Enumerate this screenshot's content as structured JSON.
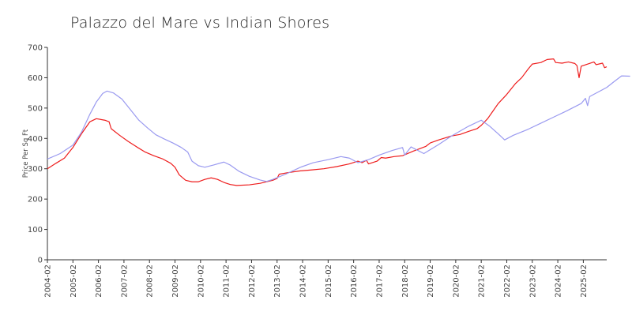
{
  "chart_data": {
    "type": "line",
    "title": "Palazzo del Mare vs Indian Shores",
    "xlabel": "",
    "ylabel": "Price Per Sq Ft",
    "x_tick_labels": [
      "2004-02",
      "2005-02",
      "2006-02",
      "2007-02",
      "2008-02",
      "2009-02",
      "2010-02",
      "2011-02",
      "2012-02",
      "2013-02",
      "2014-02",
      "2015-02",
      "2016-02",
      "2017-02",
      "2018-02",
      "2019-02",
      "2020-02",
      "2021-02",
      "2022-02",
      "2023-02",
      "2024-02",
      "2025-02"
    ],
    "y_ticks": [
      0,
      100,
      200,
      300,
      400,
      500,
      600,
      700
    ],
    "ylim": [
      0,
      700
    ],
    "xlim": [
      "2004-02",
      "2026-01"
    ],
    "grid": false,
    "legend": "none",
    "series": [
      {
        "color": "#ee1c1c",
        "points": [
          [
            "2004-02",
            300
          ],
          [
            "2004-06",
            318
          ],
          [
            "2004-10",
            335
          ],
          [
            "2005-02",
            370
          ],
          [
            "2005-06",
            415
          ],
          [
            "2005-10",
            455
          ],
          [
            "2006-01",
            465
          ],
          [
            "2006-05",
            460
          ],
          [
            "2006-07",
            455
          ],
          [
            "2006-08",
            432
          ],
          [
            "2006-12",
            410
          ],
          [
            "2007-04",
            390
          ],
          [
            "2007-08",
            372
          ],
          [
            "2007-12",
            355
          ],
          [
            "2008-04",
            343
          ],
          [
            "2008-08",
            333
          ],
          [
            "2008-12",
            318
          ],
          [
            "2009-02",
            305
          ],
          [
            "2009-04",
            280
          ],
          [
            "2009-07",
            262
          ],
          [
            "2009-10",
            257
          ],
          [
            "2010-01",
            257
          ],
          [
            "2010-04",
            265
          ],
          [
            "2010-07",
            270
          ],
          [
            "2010-10",
            265
          ],
          [
            "2011-01",
            255
          ],
          [
            "2011-04",
            248
          ],
          [
            "2011-07",
            245
          ],
          [
            "2012-01",
            247
          ],
          [
            "2012-06",
            252
          ],
          [
            "2012-12",
            262
          ],
          [
            "2013-02",
            268
          ],
          [
            "2013-03",
            282
          ],
          [
            "2013-07",
            287
          ],
          [
            "2014-01",
            293
          ],
          [
            "2014-06",
            296
          ],
          [
            "2014-12",
            300
          ],
          [
            "2015-06",
            307
          ],
          [
            "2015-12",
            316
          ],
          [
            "2016-04",
            325
          ],
          [
            "2016-06",
            320
          ],
          [
            "2016-08",
            328
          ],
          [
            "2016-09",
            316
          ],
          [
            "2017-01",
            325
          ],
          [
            "2017-03",
            337
          ],
          [
            "2017-05",
            335
          ],
          [
            "2017-09",
            340
          ],
          [
            "2018-01",
            343
          ],
          [
            "2018-06",
            358
          ],
          [
            "2018-12",
            374
          ],
          [
            "2019-02",
            385
          ],
          [
            "2019-06",
            395
          ],
          [
            "2019-12",
            408
          ],
          [
            "2020-04",
            413
          ],
          [
            "2020-08",
            423
          ],
          [
            "2020-12",
            432
          ],
          [
            "2021-02",
            443
          ],
          [
            "2021-05",
            465
          ],
          [
            "2021-07",
            485
          ],
          [
            "2021-10",
            515
          ],
          [
            "2022-02",
            545
          ],
          [
            "2022-06",
            580
          ],
          [
            "2022-09",
            600
          ],
          [
            "2022-12",
            628
          ],
          [
            "2023-02",
            645
          ],
          [
            "2023-06",
            650
          ],
          [
            "2023-09",
            660
          ],
          [
            "2023-12",
            662
          ],
          [
            "2024-01",
            650
          ],
          [
            "2024-04",
            648
          ],
          [
            "2024-07",
            652
          ],
          [
            "2024-10",
            647
          ],
          [
            "2024-11",
            640
          ],
          [
            "2024-12",
            600
          ],
          [
            "2025-01",
            638
          ],
          [
            "2025-04",
            645
          ],
          [
            "2025-07",
            652
          ],
          [
            "2025-08",
            643
          ],
          [
            "2025-11",
            648
          ],
          [
            "2025-12",
            633
          ],
          [
            "2026-01",
            636
          ]
        ]
      },
      {
        "color": "#9a9af0",
        "points": [
          [
            "2004-02",
            332
          ],
          [
            "2004-08",
            350
          ],
          [
            "2005-02",
            378
          ],
          [
            "2005-06",
            420
          ],
          [
            "2005-10",
            480
          ],
          [
            "2006-01",
            520
          ],
          [
            "2006-04",
            548
          ],
          [
            "2006-06",
            556
          ],
          [
            "2006-09",
            550
          ],
          [
            "2007-01",
            530
          ],
          [
            "2007-05",
            495
          ],
          [
            "2007-09",
            460
          ],
          [
            "2008-01",
            435
          ],
          [
            "2008-05",
            412
          ],
          [
            "2008-09",
            398
          ],
          [
            "2009-01",
            385
          ],
          [
            "2009-05",
            370
          ],
          [
            "2009-08",
            355
          ],
          [
            "2009-10",
            325
          ],
          [
            "2010-01",
            310
          ],
          [
            "2010-04",
            305
          ],
          [
            "2010-08",
            312
          ],
          [
            "2011-01",
            322
          ],
          [
            "2011-04",
            312
          ],
          [
            "2011-08",
            292
          ],
          [
            "2012-01",
            275
          ],
          [
            "2012-06",
            263
          ],
          [
            "2012-09",
            258
          ],
          [
            "2012-12",
            265
          ],
          [
            "2013-06",
            282
          ],
          [
            "2014-01",
            305
          ],
          [
            "2014-07",
            320
          ],
          [
            "2015-02",
            330
          ],
          [
            "2015-08",
            340
          ],
          [
            "2015-12",
            335
          ],
          [
            "2016-04",
            320
          ],
          [
            "2016-09",
            330
          ],
          [
            "2017-02",
            345
          ],
          [
            "2017-08",
            360
          ],
          [
            "2018-01",
            370
          ],
          [
            "2018-02",
            345
          ],
          [
            "2018-05",
            372
          ],
          [
            "2018-11",
            350
          ],
          [
            "2019-06",
            380
          ],
          [
            "2019-12",
            408
          ],
          [
            "2020-08",
            440
          ],
          [
            "2021-02",
            460
          ],
          [
            "2021-06",
            440
          ],
          [
            "2021-10",
            415
          ],
          [
            "2022-01",
            395
          ],
          [
            "2022-05",
            410
          ],
          [
            "2022-12",
            430
          ],
          [
            "2023-06",
            450
          ],
          [
            "2023-12",
            470
          ],
          [
            "2024-06",
            490
          ],
          [
            "2025-01",
            515
          ],
          [
            "2025-03",
            532
          ],
          [
            "2025-04",
            508
          ],
          [
            "2025-05",
            538
          ],
          [
            "2025-09",
            553
          ],
          [
            "2026-01",
            568
          ],
          [
            "2026-05",
            590
          ],
          [
            "2026-08",
            606
          ],
          [
            "2026-12",
            605
          ]
        ]
      }
    ]
  }
}
